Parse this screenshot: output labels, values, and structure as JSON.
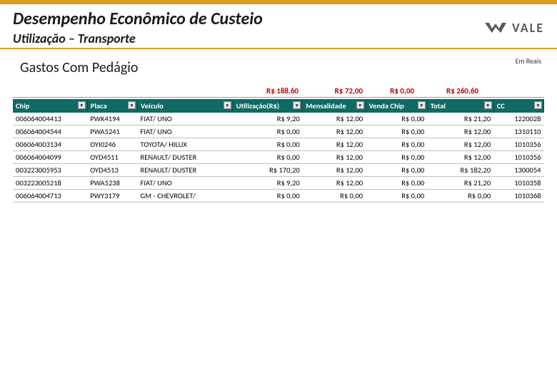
{
  "header": {
    "main_title": "Desempenho Econômico de Custeio",
    "sub_title": "Utilização – Transporte",
    "logo_text": "VALE"
  },
  "section": {
    "title": "Gastos Com Pedágio",
    "unit": "Em Reais"
  },
  "summary": {
    "utilizacao": "R$ 188,60",
    "mensalidade": "R$ 72,00",
    "venda": "R$ 0,00",
    "total": "R$ 260,60"
  },
  "table": {
    "columns": [
      "Chip",
      "Placa",
      "Veículo",
      "Utilização(R$)",
      "Mensalidade",
      "Venda Chip",
      "Total",
      "CC"
    ],
    "rows": [
      [
        "006064004413",
        "PWK4194",
        "FIAT/ UNO",
        "R$ 9,20",
        "R$ 12,00",
        "R$ 0,00",
        "R$ 21,20",
        "1220028"
      ],
      [
        "006064004544",
        "PWA5241",
        "FIAT/ UNO",
        "R$ 0,00",
        "R$ 12,00",
        "R$ 0,00",
        "R$ 12,00",
        "1310110"
      ],
      [
        "006064003134",
        "OYI0246",
        "TOYOTA/ HILUX",
        "R$ 0,00",
        "R$ 12,00",
        "R$ 0,00",
        "R$ 12,00",
        "1010356"
      ],
      [
        "006064004099",
        "OYD4511",
        "RENAULT/ DUSTER",
        "R$ 0,00",
        "R$ 12,00",
        "R$ 0,00",
        "R$ 12,00",
        "1010356"
      ],
      [
        "003223005953",
        "OYD4513",
        "RENAULT/ DUSTER",
        "R$ 170,20",
        "R$ 12,00",
        "R$ 0,00",
        "R$ 182,20",
        "1300054"
      ],
      [
        "003223005218",
        "PWA5238",
        "FIAT/ UNO",
        "R$ 9,20",
        "R$ 12,00",
        "R$ 0,00",
        "R$ 21,20",
        "1010358"
      ],
      [
        "006064004713",
        "PWY3179",
        "GM - CHEVROLET/",
        "R$ 0,00",
        "R$ 0,00",
        "R$ 0,00",
        "R$ 0,00",
        "1010368"
      ]
    ],
    "header_bg": "#0f6a63",
    "header_fg": "#ffffff",
    "summary_color": "#c00000"
  }
}
